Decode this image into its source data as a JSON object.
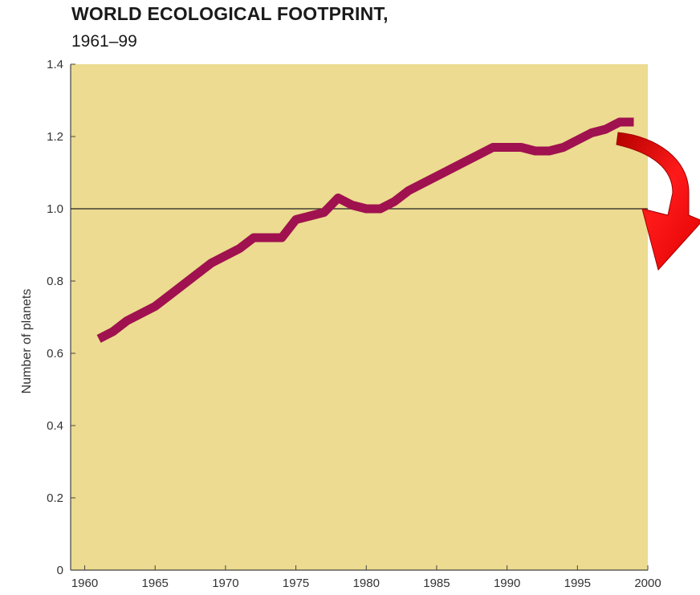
{
  "chart_data": {
    "type": "line",
    "title": "WORLD ECOLOGICAL FOOTPRINT,",
    "subtitle": "1961–99",
    "xlabel": "",
    "ylabel": "Number of planets",
    "xlim": [
      1959,
      2000
    ],
    "ylim": [
      0,
      1.4
    ],
    "xticks": [
      1960,
      1965,
      1970,
      1975,
      1980,
      1985,
      1990,
      1995,
      2000
    ],
    "yticks": [
      0,
      0.2,
      0.4,
      0.6,
      0.8,
      1.0,
      1.2,
      1.4
    ],
    "ytick_labels": [
      "0",
      "0.2",
      "0.4",
      "0.6",
      "0.8",
      "1.0",
      "1.2",
      "1.4"
    ],
    "reference_line": 1.0,
    "grid": false,
    "series": [
      {
        "x": [
          1961,
          1962,
          1963,
          1964,
          1965,
          1966,
          1967,
          1968,
          1969,
          1970,
          1971,
          1972,
          1973,
          1974,
          1975,
          1976,
          1977,
          1978,
          1979,
          1980,
          1981,
          1982,
          1983,
          1984,
          1985,
          1986,
          1987,
          1988,
          1989,
          1990,
          1991,
          1992,
          1993,
          1994,
          1995,
          1996,
          1997,
          1998,
          1999
        ],
        "values": [
          0.64,
          0.66,
          0.69,
          0.71,
          0.73,
          0.76,
          0.79,
          0.82,
          0.85,
          0.87,
          0.89,
          0.92,
          0.92,
          0.92,
          0.97,
          0.98,
          0.99,
          1.03,
          1.01,
          1.0,
          1.0,
          1.02,
          1.05,
          1.07,
          1.09,
          1.11,
          1.13,
          1.15,
          1.17,
          1.17,
          1.17,
          1.16,
          1.16,
          1.17,
          1.19,
          1.21,
          1.22,
          1.24,
          1.24
        ]
      }
    ],
    "colors": {
      "plot_background": "#ecdb90",
      "line": "#a0114f",
      "arrow": "#e00000",
      "reference_line": "#222222"
    }
  }
}
